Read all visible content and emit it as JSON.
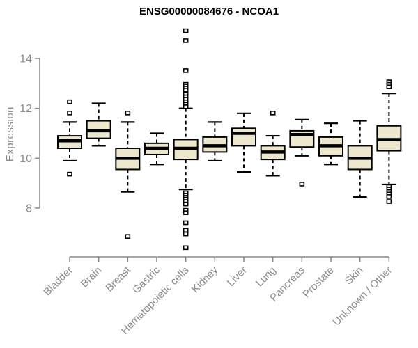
{
  "chart_data": {
    "type": "boxplot",
    "title": "ENSG00000084676 - NCOA1",
    "ylabel": "Expression",
    "xlabel": "",
    "yticks": [
      8,
      10,
      12,
      14
    ],
    "ylim": [
      6.2,
      15.3
    ],
    "grid": false,
    "legend": "none",
    "colors": {
      "box_fill": "#EDE8CD",
      "box_stroke": "#000000",
      "median": "#000000",
      "whisker": "#000000",
      "outlier_stroke": "#000000",
      "outlier_fill": "#FFFFFF",
      "axis": "#8A8A8A",
      "tick_text": "#8A8A8A",
      "title_text": "#000000",
      "background": "#FFFFFF"
    },
    "categories": [
      "Bladder",
      "Brain",
      "Breast",
      "Gastric",
      "Hematopoietic cells",
      "Kidney",
      "Liver",
      "Lung",
      "Pancreas",
      "Prostate",
      "Skin",
      "Unknown / Other"
    ],
    "boxes": [
      {
        "category": "Bladder",
        "whisker_low": 9.9,
        "q1": 10.4,
        "median": 10.7,
        "q3": 10.9,
        "whisker_high": 11.45,
        "outliers": [
          12.25,
          11.8,
          9.35
        ]
      },
      {
        "category": "Brain",
        "whisker_low": 10.5,
        "q1": 10.8,
        "median": 11.1,
        "q3": 11.5,
        "whisker_high": 12.2,
        "outliers": []
      },
      {
        "category": "Breast",
        "whisker_low": 8.65,
        "q1": 9.55,
        "median": 10.0,
        "q3": 10.4,
        "whisker_high": 11.45,
        "outliers": [
          11.8,
          6.85
        ]
      },
      {
        "category": "Gastric",
        "whisker_low": 9.75,
        "q1": 10.15,
        "median": 10.4,
        "q3": 10.6,
        "whisker_high": 11.0,
        "outliers": []
      },
      {
        "category": "Hematopoietic cells",
        "whisker_low": 8.75,
        "q1": 9.95,
        "median": 10.4,
        "q3": 10.75,
        "whisker_high": 12.0,
        "outliers": [
          15.1,
          14.7,
          13.5,
          12.95,
          12.88,
          12.8,
          12.72,
          12.55,
          12.45,
          12.35,
          12.25,
          12.15,
          12.05,
          8.6,
          8.5,
          8.42,
          8.35,
          8.25,
          8.15,
          7.9,
          7.8,
          7.4,
          7.1,
          6.95,
          6.4
        ]
      },
      {
        "category": "Kidney",
        "whisker_low": 9.9,
        "q1": 10.25,
        "median": 10.5,
        "q3": 10.85,
        "whisker_high": 11.45,
        "outliers": []
      },
      {
        "category": "Liver",
        "whisker_low": 9.45,
        "q1": 10.5,
        "median": 11.0,
        "q3": 11.2,
        "whisker_high": 11.8,
        "outliers": []
      },
      {
        "category": "Lung",
        "whisker_low": 9.3,
        "q1": 9.95,
        "median": 10.25,
        "q3": 10.5,
        "whisker_high": 10.9,
        "outliers": [
          11.8
        ]
      },
      {
        "category": "Pancreas",
        "whisker_low": 10.1,
        "q1": 10.45,
        "median": 10.95,
        "q3": 11.1,
        "whisker_high": 11.55,
        "outliers": [
          8.95
        ]
      },
      {
        "category": "Prostate",
        "whisker_low": 9.75,
        "q1": 10.1,
        "median": 10.5,
        "q3": 10.85,
        "whisker_high": 11.4,
        "outliers": []
      },
      {
        "category": "Skin",
        "whisker_low": 8.45,
        "q1": 9.55,
        "median": 10.0,
        "q3": 10.5,
        "whisker_high": 11.5,
        "outliers": []
      },
      {
        "category": "Unknown / Other",
        "whisker_low": 8.95,
        "q1": 10.3,
        "median": 10.75,
        "q3": 11.3,
        "whisker_high": 12.6,
        "outliers": [
          13.05,
          12.95,
          12.85,
          8.85,
          8.75,
          8.65,
          8.55,
          8.45,
          8.25
        ]
      }
    ]
  }
}
